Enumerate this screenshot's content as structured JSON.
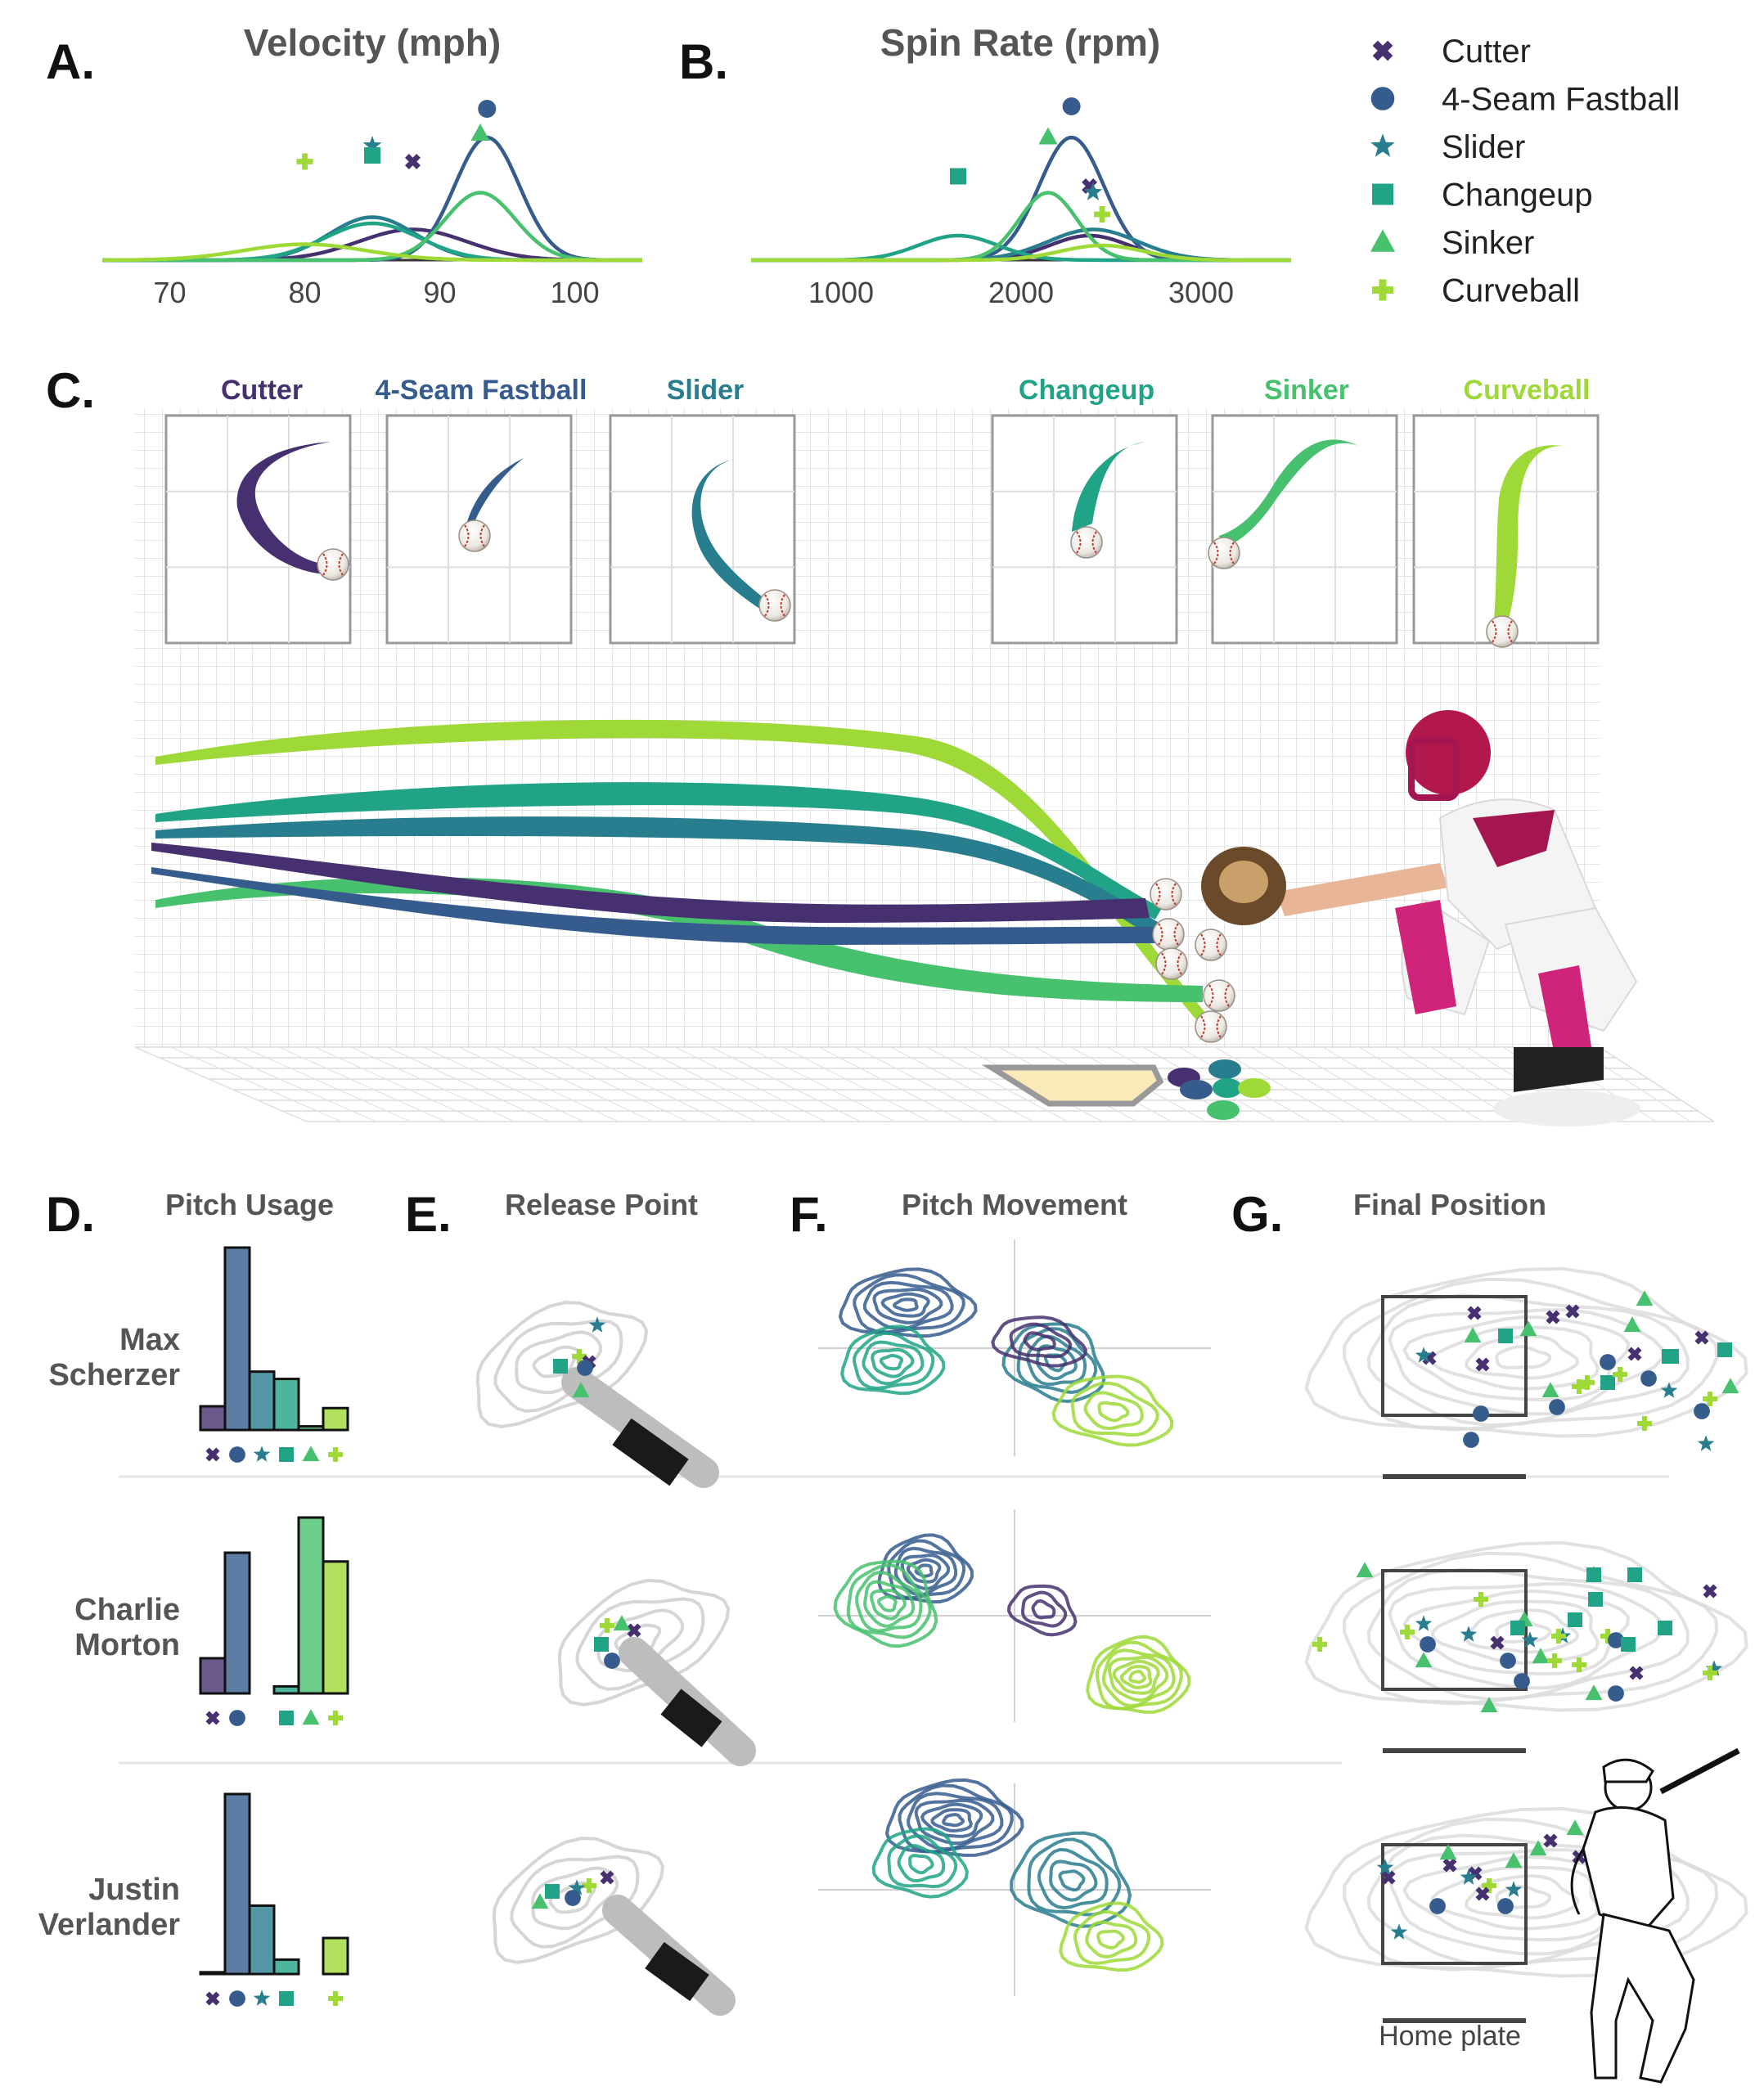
{
  "panel_labels": {
    "a": "A.",
    "b": "B.",
    "c": "C.",
    "d": "D.",
    "e": "E.",
    "f": "F.",
    "g": "G."
  },
  "titles": {
    "velocity": "Velocity (mph)",
    "spin": "Spin Rate (rpm)",
    "usage": "Pitch Usage",
    "release": "Release Point",
    "movement": "Pitch Movement",
    "final": "Final Position"
  },
  "pitches": [
    {
      "name": "Cutter",
      "color": "#46306f",
      "marker": "cross-x"
    },
    {
      "name": "4-Seam Fastball",
      "color": "#355c8d",
      "marker": "circle"
    },
    {
      "name": "Slider",
      "color": "#287d8e",
      "marker": "star"
    },
    {
      "name": "Changeup",
      "color": "#20a386",
      "marker": "square"
    },
    {
      "name": "Sinker",
      "color": "#48c16e",
      "marker": "triangle"
    },
    {
      "name": "Curveball",
      "color": "#9fd938",
      "marker": "plus"
    }
  ],
  "players": [
    {
      "first": "Max",
      "last": "Scherzer"
    },
    {
      "first": "Charlie",
      "last": "Morton"
    },
    {
      "first": "Justin",
      "last": "Verlander"
    }
  ],
  "home_plate_label": "Home plate",
  "chart_data": [
    {
      "panel": "A",
      "type": "line",
      "title": "Velocity (mph)",
      "xlim": [
        65,
        105
      ],
      "xticks": [
        "70",
        "80",
        "90",
        "100"
      ],
      "series": [
        {
          "name": "Cutter",
          "mean": 88,
          "sd": 4,
          "peak": 0.25,
          "marker_y": 0.55
        },
        {
          "name": "4-Seam Fastball",
          "mean": 93.5,
          "sd": 2.4,
          "peak": 1.0,
          "marker_y": 0.98
        },
        {
          "name": "Slider",
          "mean": 85,
          "sd": 3.2,
          "peak": 0.35,
          "marker_y": 0.68
        },
        {
          "name": "Changeup",
          "mean": 85,
          "sd": 3.5,
          "peak": 0.3,
          "marker_y": 0.6
        },
        {
          "name": "Sinker",
          "mean": 93,
          "sd": 2.6,
          "peak": 0.55,
          "marker_y": 0.78
        },
        {
          "name": "Curveball",
          "mean": 80,
          "sd": 4.5,
          "peak": 0.13,
          "marker_y": 0.55
        }
      ]
    },
    {
      "panel": "B",
      "type": "line",
      "title": "Spin Rate (rpm)",
      "xlim": [
        500,
        3500
      ],
      "xticks": [
        "1000",
        "2000",
        "3000"
      ],
      "series": [
        {
          "name": "Cutter",
          "mean": 2380,
          "sd": 220,
          "peak": 0.2,
          "marker_y": 0.35
        },
        {
          "name": "4-Seam Fastball",
          "mean": 2280,
          "sd": 180,
          "peak": 1.0,
          "marker_y": 1.0
        },
        {
          "name": "Slider",
          "mean": 2400,
          "sd": 250,
          "peak": 0.25,
          "marker_y": 0.3
        },
        {
          "name": "Changeup",
          "mean": 1650,
          "sd": 220,
          "peak": 0.2,
          "marker_y": 0.43
        },
        {
          "name": "Sinker",
          "mean": 2150,
          "sd": 160,
          "peak": 0.55,
          "marker_y": 0.75
        },
        {
          "name": "Curveball",
          "mean": 2450,
          "sd": 230,
          "peak": 0.12,
          "marker_y": 0.12
        }
      ]
    },
    {
      "panel": "D",
      "type": "bar",
      "title": "Pitch Usage",
      "categories": [
        "Cutter",
        "4-Seam Fastball",
        "Slider",
        "Changeup",
        "Sinker",
        "Curveball"
      ],
      "series": [
        {
          "name": "Max Scherzer",
          "values": [
            0.13,
            1.0,
            0.32,
            0.28,
            0.02,
            0.12
          ]
        },
        {
          "name": "Charlie Morton",
          "values": [
            0.2,
            0.8,
            0.0,
            0.04,
            1.0,
            0.75
          ]
        },
        {
          "name": "Justin Verlander",
          "values": [
            0.01,
            1.0,
            0.38,
            0.08,
            0.0,
            0.2
          ]
        }
      ]
    }
  ]
}
